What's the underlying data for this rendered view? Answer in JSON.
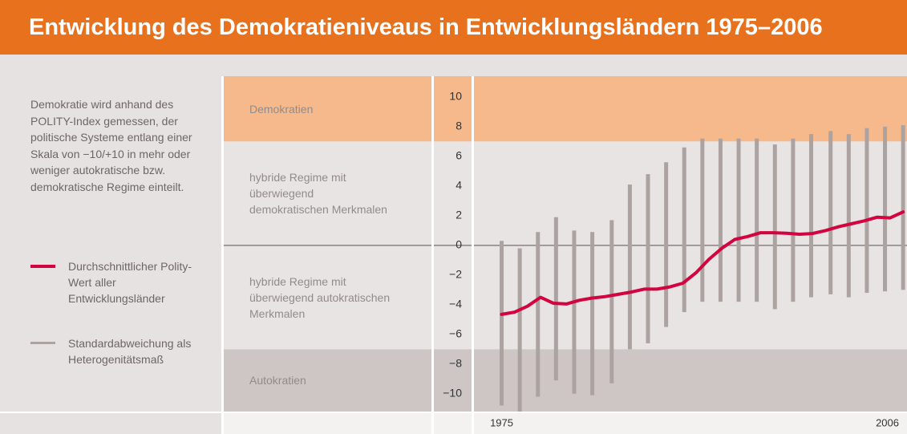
{
  "chart_data": {
    "type": "line",
    "title": "Entwicklung des Demokratieniveaus in Entwicklungsländern 1975–2006",
    "description": "Demokratie wird anhand des POLITY-Index gemessen, der politische Systeme entlang einer Skala von −10/+10 in mehr oder weniger autokratische bzw. demokratische Regime einteilt.",
    "xlim": [
      1972.8,
      2006.3
    ],
    "xticks": [
      1975,
      2006
    ],
    "ylim": [
      -11.2,
      11.4
    ],
    "yticks": [
      10,
      8,
      6,
      4,
      2,
      0,
      {
        "value": -2,
        "label": "−2"
      },
      {
        "value": -4,
        "label": "−4"
      },
      {
        "value": -6,
        "label": "−6"
      },
      {
        "value": -8,
        "label": "−8"
      },
      {
        "value": -10,
        "label": "−10"
      }
    ],
    "zones": [
      {
        "label": "Demokratien",
        "range": [
          7,
          11.4
        ],
        "color": "#f5b98b"
      },
      {
        "label": "hybride Regime mit überwiegend demokratischen Merkmalen",
        "range": [
          0,
          7
        ],
        "color": "#e8e4e3"
      },
      {
        "label": "hybride Regime mit überwiegend autokratischen Merkmalen",
        "range": [
          -7,
          0
        ],
        "color": "#e8e4e3"
      },
      {
        "label": "Autokratien",
        "range": [
          -11.2,
          -7
        ],
        "color": "#cdc6c4"
      }
    ],
    "series": [
      {
        "name": "Standardabweichung als Heterogenitätsmaß",
        "kind": "range",
        "color": "#aca3a1",
        "x": [
          1975,
          1976.4,
          1977.8,
          1979.2,
          1980.6,
          1982.0,
          1983.5,
          1984.9,
          1986.3,
          1987.7,
          1989.1,
          1990.5,
          1991.9,
          1993.3,
          1994.7,
          1996.1,
          1997.5,
          1998.9,
          2000.4,
          2001.8,
          2003.2,
          2004.6,
          2006
        ],
        "high": [
          0.3,
          -0.2,
          0.9,
          1.9,
          1.0,
          0.9,
          1.7,
          4.1,
          4.8,
          5.6,
          6.6,
          7.2,
          7.2,
          7.2,
          7.2,
          6.8,
          7.2,
          7.5,
          7.7,
          7.5,
          7.9,
          8.0,
          8.1
        ],
        "low": [
          -10.8,
          -11.2,
          -10.2,
          -9.1,
          -10.0,
          -10.1,
          -9.3,
          -7.0,
          -6.6,
          -5.5,
          -4.5,
          -3.8,
          -3.8,
          -3.8,
          -3.8,
          -4.3,
          -3.8,
          -3.5,
          -3.3,
          -3.5,
          -3.2,
          -3.1,
          -3.0
        ]
      },
      {
        "name": "Durchschnittlicher Polity-Wert aller Entwicklungsländer",
        "kind": "line",
        "color": "#d2033f",
        "x": [
          1975,
          1976,
          1977,
          1978,
          1979,
          1980,
          1981,
          1982,
          1983,
          1984,
          1985,
          1986,
          1987,
          1988,
          1989,
          1990,
          1991,
          1992,
          1993,
          1994,
          1995,
          1996,
          1997,
          1998,
          1999,
          2000,
          2001,
          2002,
          2003,
          2004,
          2005,
          2006
        ],
        "values": [
          -4.65,
          -4.5,
          -4.1,
          -3.5,
          -3.9,
          -3.95,
          -3.7,
          -3.55,
          -3.45,
          -3.3,
          -3.15,
          -2.95,
          -2.95,
          -2.8,
          -2.55,
          -1.85,
          -0.95,
          -0.2,
          0.4,
          0.6,
          0.85,
          0.85,
          0.82,
          0.75,
          0.8,
          1.0,
          1.25,
          1.45,
          1.65,
          1.9,
          1.85,
          2.25
        ]
      }
    ]
  }
}
